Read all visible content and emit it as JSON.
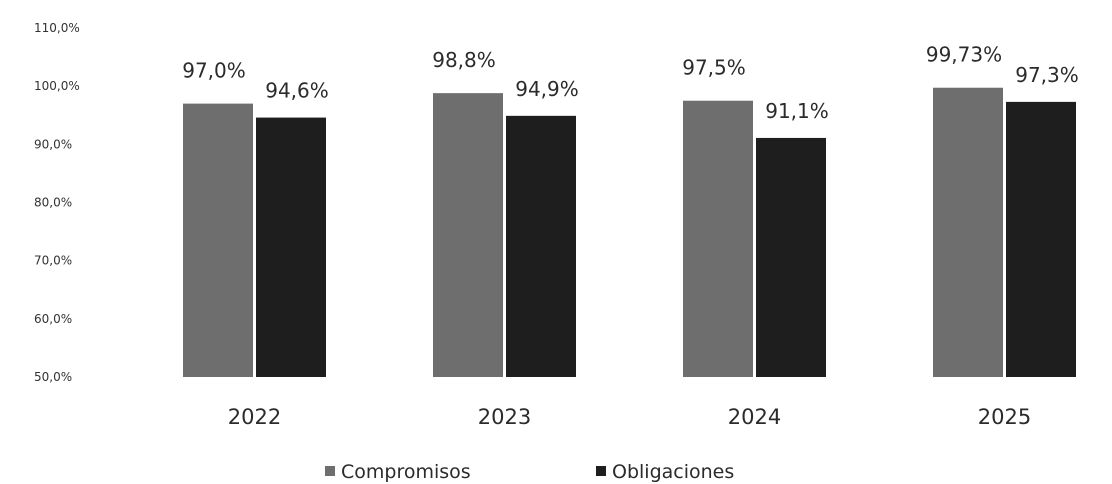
{
  "chart_data": {
    "type": "bar",
    "categories": [
      "2022",
      "2023",
      "2024",
      "2025"
    ],
    "series": [
      {
        "name": "Compromisos",
        "values": [
          97.0,
          98.8,
          97.5,
          99.73
        ],
        "labels": [
          "97,0%",
          "98,8%",
          "97,5%",
          "99,73%"
        ],
        "color": "#6e6e6e"
      },
      {
        "name": "Obligaciones",
        "values": [
          94.6,
          94.9,
          91.1,
          97.3
        ],
        "labels": [
          "94,6%",
          "94,9%",
          "91,1%",
          "97,3%"
        ],
        "color": "#1e1e1e"
      }
    ],
    "yticks": [
      {
        "value": 110,
        "label": "110,0%"
      },
      {
        "value": 100,
        "label": "100,0%"
      },
      {
        "value": 90,
        "label": "90,0%"
      },
      {
        "value": 80,
        "label": "80,0%"
      },
      {
        "value": 70,
        "label": "70,0%"
      },
      {
        "value": 60,
        "label": "60,0%"
      },
      {
        "value": 50,
        "label": "50,0%"
      }
    ],
    "ylim": [
      50,
      110
    ],
    "title": "",
    "xlabel": "",
    "ylabel": "",
    "grid": false,
    "legend": "bottom-center"
  }
}
